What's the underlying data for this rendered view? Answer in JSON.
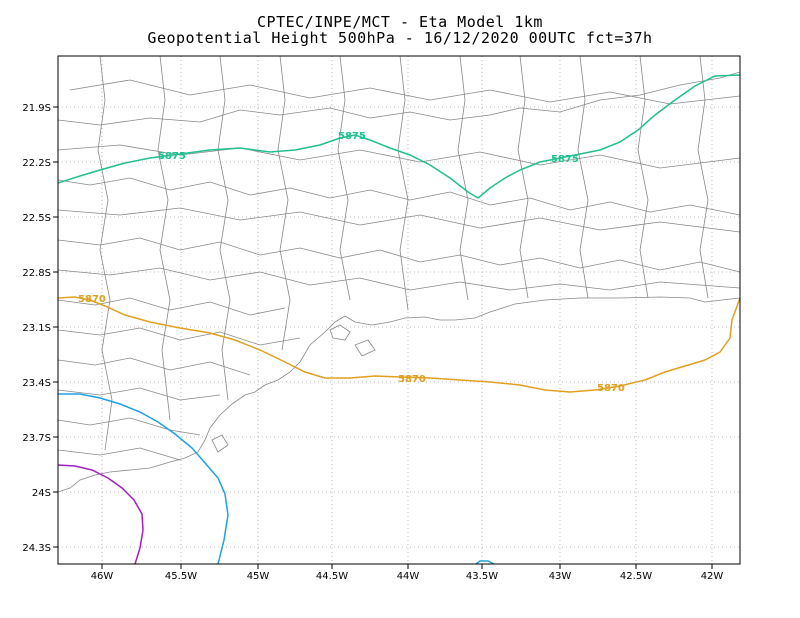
{
  "title": {
    "line1": "CPTEC/INPE/MCT -  Eta Model 1km",
    "line2": "Geopotential Height 500hPa - 16/12/2020 00UTC fct=37h"
  },
  "axes": {
    "x_ticks": [
      "46W",
      "45.5W",
      "45W",
      "44.5W",
      "44W",
      "43.5W",
      "43W",
      "42.5W",
      "42W"
    ],
    "y_ticks": [
      "21.9S",
      "22.2S",
      "22.5S",
      "22.8S",
      "23.1S",
      "23.4S",
      "23.7S",
      "24S",
      "24.3S"
    ],
    "grid": "dotted"
  },
  "contours": [
    {
      "level": "5875",
      "color": "#20c090",
      "labels": [
        "5875",
        "5875",
        "5875"
      ]
    },
    {
      "level": "5870",
      "color": "#e0a020",
      "labels": [
        "5870",
        "5870",
        "5870"
      ]
    },
    {
      "level": "",
      "color": "#1fa0e0",
      "labels": []
    },
    {
      "level": "",
      "color": "#a020c0",
      "labels": []
    }
  ],
  "map": {
    "border_color": "#888888",
    "background": "#ffffff"
  }
}
